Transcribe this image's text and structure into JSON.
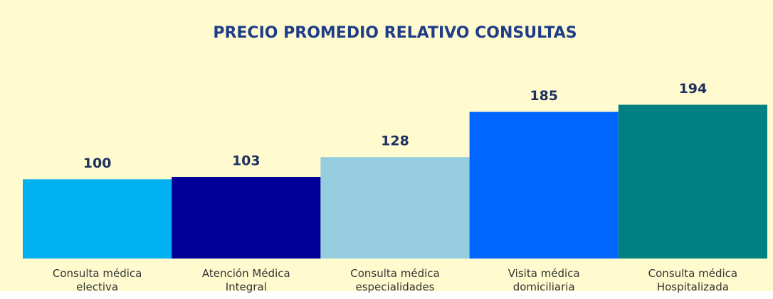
{
  "chart_data": {
    "type": "bar",
    "title": "PRECIO PROMEDIO RELATIVO CONSULTAS",
    "categories": [
      "Consulta médica electiva",
      "Atención Médica Integral",
      "Consulta médica especialidades",
      "Visita médica domiciliaria",
      "Consulta médica Hospitalizada"
    ],
    "values": [
      100,
      103,
      128,
      185,
      194
    ],
    "colors": [
      "#00b0f0",
      "#000099",
      "#96cddf",
      "#0066ff",
      "#008080"
    ],
    "ylim": [
      0,
      250
    ]
  }
}
